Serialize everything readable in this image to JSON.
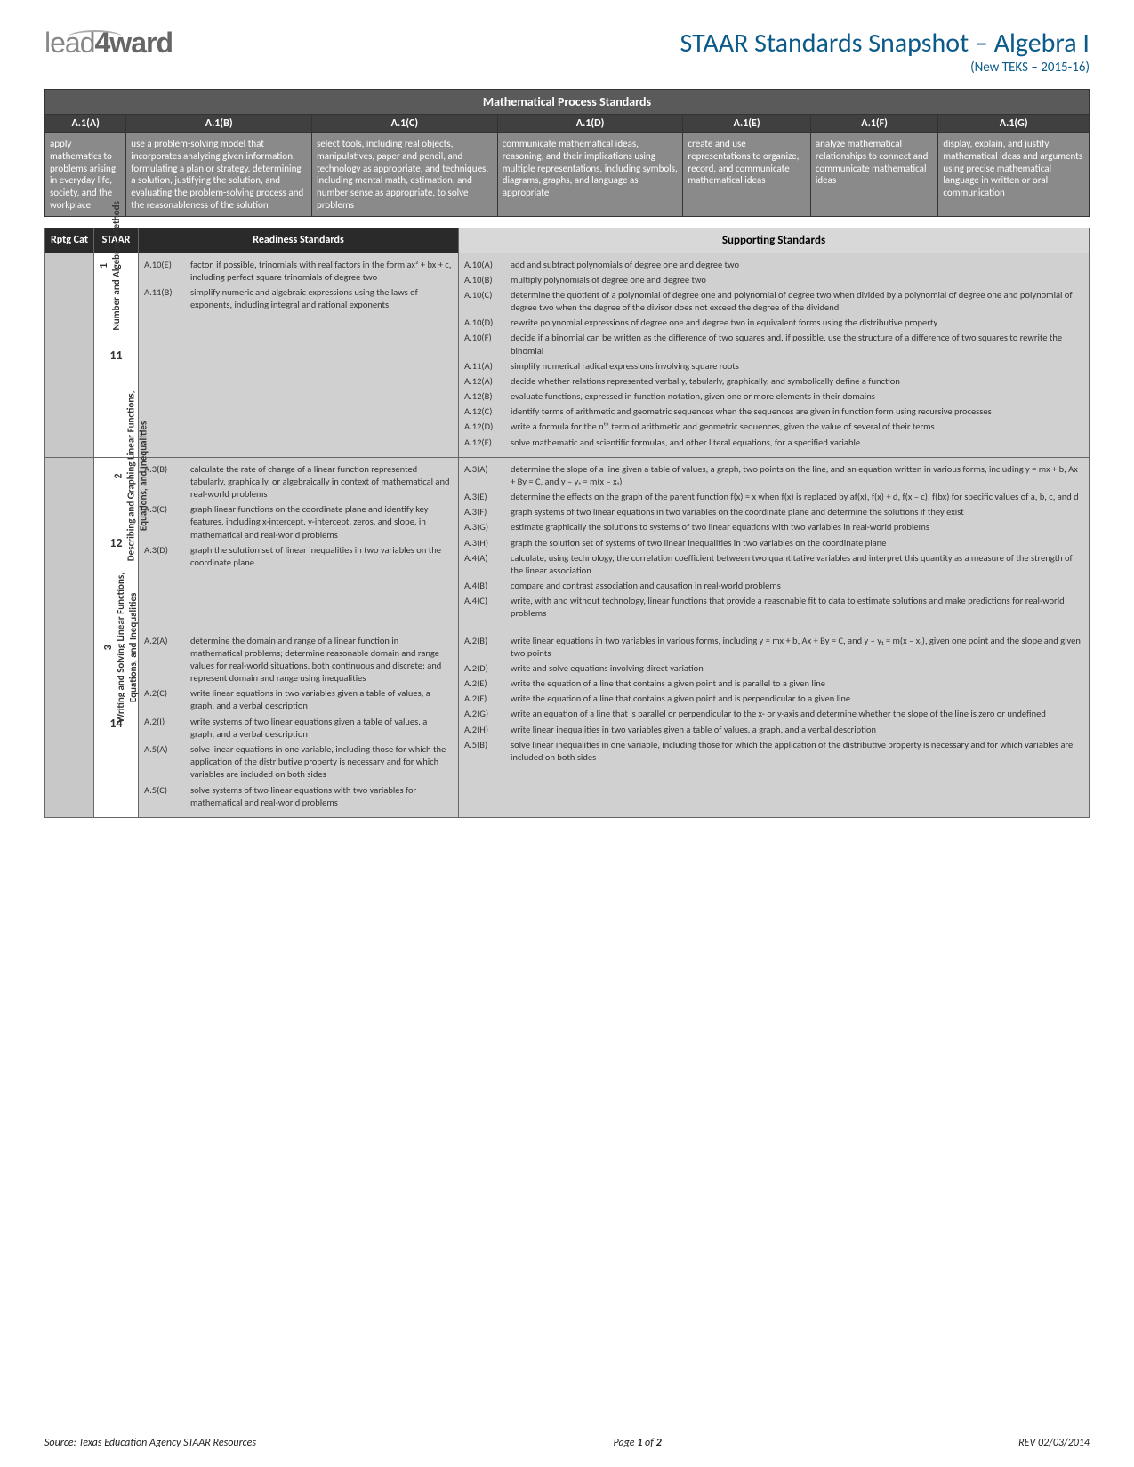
{
  "logo_text_1": "lead",
  "logo_text_2": "4ward",
  "title": "STAAR Standards Snapshot – Algebra I",
  "subtitle": "(New TEKS – 2015-16)",
  "process_header": "Mathematical Process Standards",
  "process_standards": [
    {
      "code": "A.1(A)",
      "desc": "apply mathematics to problems arising in everyday life, society, and the workplace"
    },
    {
      "code": "A.1(B)",
      "desc": "use a problem-solving model that incorporates analyzing given information, formulating a plan or strategy, determining a solution, justifying the solution, and evaluating the problem-solving process and the reasonableness of the solution"
    },
    {
      "code": "A.1(C)",
      "desc": "select tools, including real objects, manipulatives, paper and pencil, and technology as appropriate, and techniques, including mental math, estimation, and number sense as appropriate, to solve problems"
    },
    {
      "code": "A.1(D)",
      "desc": "communicate mathematical ideas, reasoning, and their implications using multiple representations, including symbols, diagrams, graphs, and language as appropriate"
    },
    {
      "code": "A.1(E)",
      "desc": "create and use representations to organize, record, and communicate mathematical ideas"
    },
    {
      "code": "A.1(F)",
      "desc": "analyze mathematical relationships to connect and communicate mathematical ideas"
    },
    {
      "code": "A.1(G)",
      "desc": "display, explain, and justify mathematical ideas and arguments using precise mathematical language in written or oral communication"
    }
  ],
  "main_headers": {
    "cat": "Rptg Cat",
    "staar": "STAAR",
    "readiness": "Readiness Standards",
    "supporting": "Supporting Standards"
  },
  "categories": [
    {
      "num": "1",
      "label": "Number and Algebraic Methods",
      "staar": "11",
      "readiness": [
        {
          "code": "A.10(E)",
          "text": "factor, if possible, trinomials with real factors in the form ax² + bx + c, including perfect square trinomials of degree two"
        },
        {
          "code": "A.11(B)",
          "text": "simplify numeric and algebraic expressions using the laws of exponents, including integral and rational exponents"
        }
      ],
      "supporting": [
        {
          "code": "A.10(A)",
          "text": "add and subtract polynomials of degree one and degree two"
        },
        {
          "code": "A.10(B)",
          "text": "multiply polynomials of degree one and degree two"
        },
        {
          "code": "A.10(C)",
          "text": "determine the quotient of a polynomial of degree one and polynomial of degree two when divided by a polynomial of degree one and polynomial of degree two when the degree of the divisor does not exceed the degree of the dividend"
        },
        {
          "code": "A.10(D)",
          "text": "rewrite polynomial expressions of degree one and degree two in equivalent forms using the distributive property"
        },
        {
          "code": "A.10(F)",
          "text": "decide if a binomial can be written as the difference of two squares and, if possible, use the structure of a difference of two squares to rewrite the binomial"
        },
        {
          "code": "A.11(A)",
          "text": "simplify numerical radical expressions involving square roots"
        },
        {
          "code": "A.12(A)",
          "text": "decide whether relations represented verbally, tabularly, graphically, and symbolically define a function"
        },
        {
          "code": "A.12(B)",
          "text": "evaluate functions, expressed in function notation, given one or more elements in their domains"
        },
        {
          "code": "A.12(C)",
          "text": "identify terms of arithmetic and geometric sequences when the sequences are given in function form using recursive processes"
        },
        {
          "code": "A.12(D)",
          "text": "write a formula for the nᵗʰ term of arithmetic and geometric sequences, given the value of several of their terms"
        },
        {
          "code": "A.12(E)",
          "text": "solve mathematic and scientific formulas, and other literal equations, for a specified variable"
        }
      ]
    },
    {
      "num": "2",
      "label": "Describing and Graphing Linear Functions, Equations, and Inequalities",
      "staar": "12",
      "readiness": [
        {
          "code": "A.3(B)",
          "text": "calculate the rate of change of a linear function represented tabularly, graphically, or algebraically in context of mathematical and real-world problems"
        },
        {
          "code": "A.3(C)",
          "text": "graph linear functions on the coordinate plane and identify key features, including x-intercept, y-intercept, zeros, and slope, in mathematical and real-world problems"
        },
        {
          "code": "A.3(D)",
          "text": "graph the solution set of linear inequalities in two variables on the coordinate plane"
        }
      ],
      "supporting": [
        {
          "code": "A.3(A)",
          "text": "determine the slope of a line given a table of values, a graph, two points on the line, and an equation written in various forms, including y = mx + b, Ax + By = C, and y – y₁ = m(x – x₁)"
        },
        {
          "code": "A.3(E)",
          "text": "determine the effects on the graph of the parent function f(x) = x when f(x) is replaced by af(x), f(x) + d, f(x – c), f(bx) for specific values of a, b, c, and d"
        },
        {
          "code": "A.3(F)",
          "text": "graph systems of two linear equations in two variables on the coordinate plane and determine the solutions if they exist"
        },
        {
          "code": "A.3(G)",
          "text": "estimate graphically the solutions to systems of two linear equations with two variables in real-world problems"
        },
        {
          "code": "A.3(H)",
          "text": "graph the solution set of systems of two linear inequalities in two variables on the coordinate plane"
        },
        {
          "code": "A.4(A)",
          "text": "calculate, using technology, the correlation coefficient between two quantitative variables and interpret this quantity as a measure of the strength of the linear association"
        },
        {
          "code": "A.4(B)",
          "text": "compare and contrast association and causation in real-world problems"
        },
        {
          "code": "A.4(C)",
          "text": "write, with and without technology, linear functions that provide a reasonable fit to data to estimate solutions and make predictions for real-world problems"
        }
      ]
    },
    {
      "num": "3",
      "label": "Writing and Solving Linear Functions, Equations, and Inequalities",
      "staar": "14",
      "readiness": [
        {
          "code": "A.2(A)",
          "text": "determine the domain and range of a linear function in mathematical problems; determine reasonable domain and range values for real-world situations, both continuous and discrete; and represent domain and range using inequalities"
        },
        {
          "code": "A.2(C)",
          "text": "write linear equations in two variables given a table of values, a graph, and a verbal description"
        },
        {
          "code": "A.2(I)",
          "text": "write systems of two linear equations given a table of values, a graph, and a verbal description"
        },
        {
          "code": "A.5(A)",
          "text": "solve linear equations in one variable, including those for which the application of the distributive property is necessary and for which variables are included on both sides"
        },
        {
          "code": "A.5(C)",
          "text": "solve systems of two linear equations with two variables for mathematical and real-world problems"
        }
      ],
      "supporting": [
        {
          "code": "A.2(B)",
          "text": "write linear equations in two variables in various forms, including y = mx + b, Ax + By = C, and y – y₁ = m(x – x₁), given one point and the slope and given two points"
        },
        {
          "code": "A.2(D)",
          "text": "write and solve equations involving direct variation"
        },
        {
          "code": "A.2(E)",
          "text": "write the equation of a line that contains a given point and is parallel to a given line"
        },
        {
          "code": "A.2(F)",
          "text": "write the equation of a line that contains a given point and is perpendicular to a given line"
        },
        {
          "code": "A.2(G)",
          "text": "write an equation of a line that is parallel or perpendicular to the x- or y-axis and determine whether the slope of the line is zero or undefined"
        },
        {
          "code": "A.2(H)",
          "text": "write linear inequalities in two variables given a table of values, a graph, and a verbal description"
        },
        {
          "code": "A.5(B)",
          "text": "solve linear inequalities in one variable, including those for which the application of the distributive property is necessary and for which variables are included on both sides"
        }
      ]
    }
  ],
  "footer": {
    "source": "Source:  Texas Education Agency STAAR Resources",
    "page": "Page 1 of 2",
    "rev": "REV 02/03/2014"
  },
  "col_widths": {
    "cat": "55px",
    "staar": "50px",
    "readiness": "360px",
    "supporting": "auto"
  },
  "colors": {
    "title": "#0a5a8a",
    "dark_header": "#2a2a2a",
    "mid_header": "#5a5a5a",
    "code_bg": "#404040",
    "desc_bg": "#8a8a8a",
    "cat_bg": "#c8c8c8",
    "std_bg": "#d0d0d0",
    "light_header": "#d8d8d8"
  }
}
